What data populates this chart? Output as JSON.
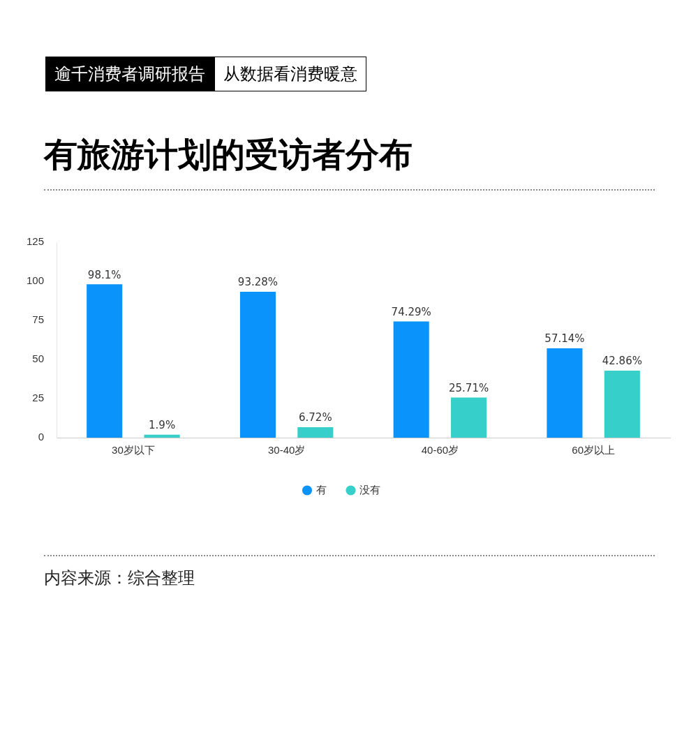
{
  "chart_data": {
    "type": "bar",
    "title": "有旅游计划的受访者分布",
    "subtitle": "逾千消费者调研报告",
    "annotations": [
      "从数据看消费暖意",
      "内容来源：综合整理"
    ],
    "categories": [
      "30岁以下",
      "30-40岁",
      "40-60岁",
      "60岁以上"
    ],
    "series": [
      {
        "name": "有",
        "color": "#0a93fa",
        "values": [
          98.1,
          93.28,
          74.29,
          57.14
        ],
        "value_labels": [
          "98.1%",
          "93.28%",
          "74.29%",
          "57.14%"
        ]
      },
      {
        "name": "没有",
        "color": "#36cfc9",
        "values": [
          1.9,
          6.72,
          25.71,
          42.86
        ],
        "value_labels": [
          "1.9%",
          "6.72%",
          "25.71%",
          "42.86%"
        ]
      }
    ],
    "ylim": [
      0,
      125
    ],
    "yticks": [
      0,
      25,
      50,
      75,
      100,
      125
    ],
    "grid": false,
    "legend": "bottom",
    "marker": "circle"
  }
}
